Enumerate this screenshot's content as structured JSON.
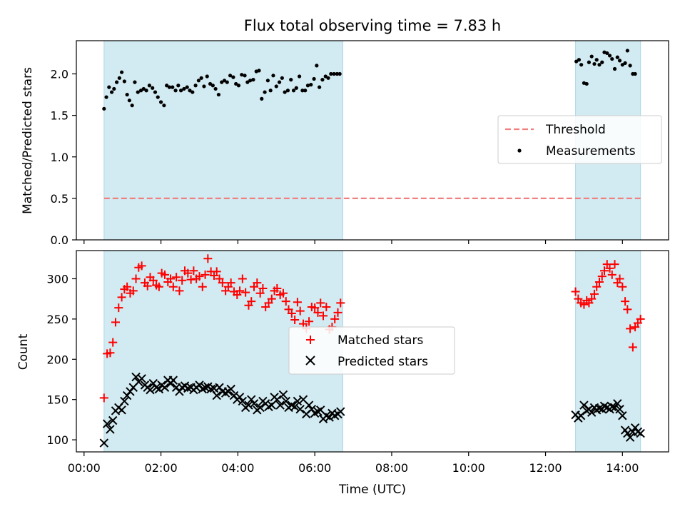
{
  "title": "Flux total observing time = 7.83 h",
  "xaxis": {
    "label": "Time (UTC)",
    "range_hours": [
      -0.2,
      15.2
    ],
    "ticks": [
      "00:00",
      "02:00",
      "04:00",
      "06:00",
      "08:00",
      "10:00",
      "12:00",
      "14:00"
    ],
    "tick_hours": [
      0,
      2,
      4,
      6,
      8,
      10,
      12,
      14
    ]
  },
  "shaded_intervals_hours": [
    [
      0.52,
      6.73
    ],
    [
      12.78,
      14.47
    ]
  ],
  "colors": {
    "shade": "#add8e6",
    "threshold": "#f08080",
    "measurements": "#000000",
    "matched": "#ff0000",
    "predicted": "#000000"
  },
  "chart_data": [
    {
      "type": "scatter",
      "ylabel": "Matched/Predicted stars",
      "ylim": [
        0.0,
        2.4
      ],
      "yticks": [
        "0.0",
        "0.5",
        "1.0",
        "1.5",
        "2.0"
      ],
      "ytick_values": [
        0.0,
        0.5,
        1.0,
        1.5,
        2.0
      ],
      "legend_position": "center-right",
      "threshold": {
        "name": "Threshold",
        "value": 0.5,
        "x_range": [
          0.52,
          14.47
        ]
      },
      "series": [
        {
          "name": "Measurements",
          "x": [
            0.52,
            0.58,
            0.65,
            0.72,
            0.78,
            0.85,
            0.92,
            0.98,
            1.05,
            1.12,
            1.18,
            1.25,
            1.32,
            1.4,
            1.48,
            1.55,
            1.62,
            1.7,
            1.78,
            1.85,
            1.92,
            2.0,
            2.08,
            2.15,
            2.22,
            2.3,
            2.38,
            2.45,
            2.52,
            2.6,
            2.68,
            2.75,
            2.82,
            2.9,
            2.98,
            3.05,
            3.12,
            3.2,
            3.28,
            3.35,
            3.42,
            3.5,
            3.58,
            3.65,
            3.72,
            3.8,
            3.88,
            3.95,
            4.02,
            4.1,
            4.18,
            4.25,
            4.32,
            4.4,
            4.48,
            4.55,
            4.62,
            4.7,
            4.78,
            4.85,
            4.92,
            5.0,
            5.08,
            5.15,
            5.22,
            5.3,
            5.38,
            5.45,
            5.52,
            5.6,
            5.68,
            5.75,
            5.82,
            5.9,
            5.98,
            6.05,
            6.12,
            6.2,
            6.28,
            6.35,
            6.42,
            6.5,
            6.58,
            6.65,
            12.8,
            12.87,
            12.93,
            13.0,
            13.07,
            13.13,
            13.2,
            13.27,
            13.33,
            13.4,
            13.47,
            13.53,
            13.6,
            13.67,
            13.73,
            13.8,
            13.87,
            13.93,
            14.0,
            14.07,
            14.13,
            14.2,
            14.27,
            14.33
          ],
          "y": [
            1.58,
            1.72,
            1.84,
            1.78,
            1.82,
            1.9,
            1.95,
            2.02,
            1.91,
            1.75,
            1.68,
            1.62,
            1.9,
            1.78,
            1.8,
            1.82,
            1.8,
            1.86,
            1.83,
            1.78,
            1.72,
            1.66,
            1.62,
            1.86,
            1.84,
            1.84,
            1.8,
            1.86,
            1.8,
            1.82,
            1.84,
            1.8,
            1.78,
            1.86,
            1.92,
            1.95,
            1.85,
            1.97,
            1.88,
            1.86,
            1.82,
            1.75,
            1.9,
            1.92,
            1.9,
            1.98,
            1.96,
            1.88,
            1.86,
            1.99,
            1.98,
            1.9,
            1.92,
            1.93,
            2.03,
            2.04,
            1.7,
            1.78,
            1.92,
            1.8,
            1.98,
            1.85,
            1.9,
            1.95,
            1.78,
            1.8,
            1.93,
            1.8,
            1.83,
            1.97,
            1.8,
            1.8,
            1.86,
            1.87,
            1.94,
            2.1,
            1.84,
            1.93,
            1.97,
            1.95,
            2.0,
            2.0,
            2.0,
            2.0,
            2.15,
            2.17,
            2.11,
            1.89,
            1.88,
            2.14,
            2.21,
            2.12,
            2.17,
            2.11,
            2.14,
            2.26,
            2.25,
            2.22,
            2.18,
            2.06,
            2.2,
            2.16,
            2.11,
            2.13,
            2.28,
            2.1,
            2.0,
            2.0
          ]
        }
      ]
    },
    {
      "type": "scatter",
      "ylabel": "Count",
      "ylim": [
        85,
        335
      ],
      "yticks": [
        "100",
        "150",
        "200",
        "250",
        "300"
      ],
      "ytick_values": [
        100,
        150,
        200,
        250,
        300
      ],
      "legend_position": "center",
      "series": [
        {
          "name": "Matched stars",
          "marker": "plus",
          "x": [
            0.52,
            0.6,
            0.68,
            0.75,
            0.82,
            0.9,
            0.98,
            1.05,
            1.12,
            1.2,
            1.28,
            1.35,
            1.42,
            1.5,
            1.58,
            1.65,
            1.72,
            1.8,
            1.88,
            1.95,
            2.02,
            2.1,
            2.18,
            2.25,
            2.32,
            2.4,
            2.48,
            2.55,
            2.62,
            2.7,
            2.78,
            2.85,
            2.92,
            3.0,
            3.08,
            3.15,
            3.22,
            3.3,
            3.38,
            3.45,
            3.52,
            3.6,
            3.68,
            3.75,
            3.82,
            3.9,
            3.98,
            4.05,
            4.12,
            4.2,
            4.28,
            4.35,
            4.42,
            4.5,
            4.58,
            4.65,
            4.72,
            4.8,
            4.88,
            4.95,
            5.02,
            5.1,
            5.18,
            5.25,
            5.32,
            5.4,
            5.48,
            5.55,
            5.62,
            5.7,
            5.78,
            5.85,
            5.92,
            6.0,
            6.08,
            6.15,
            6.22,
            6.3,
            6.38,
            6.45,
            6.52,
            6.6,
            6.67,
            12.78,
            12.85,
            12.92,
            13.0,
            13.07,
            13.13,
            13.2,
            13.27,
            13.33,
            13.4,
            13.47,
            13.53,
            13.6,
            13.67,
            13.73,
            13.8,
            13.87,
            13.93,
            14.0,
            14.07,
            14.13,
            14.2,
            14.27,
            14.33,
            14.4,
            14.47
          ],
          "y": [
            152,
            207,
            208,
            221,
            246,
            264,
            277,
            287,
            290,
            282,
            285,
            300,
            314,
            316,
            295,
            291,
            302,
            298,
            292,
            290,
            307,
            305,
            296,
            300,
            290,
            302,
            285,
            298,
            310,
            307,
            299,
            310,
            300,
            303,
            290,
            305,
            325,
            309,
            304,
            309,
            300,
            295,
            285,
            290,
            295,
            284,
            280,
            285,
            300,
            283,
            267,
            272,
            290,
            295,
            282,
            288,
            265,
            270,
            275,
            285,
            288,
            280,
            282,
            272,
            262,
            257,
            249,
            271,
            260,
            244,
            238,
            247,
            265,
            264,
            258,
            270,
            254,
            265,
            237,
            240,
            250,
            258,
            270,
            284,
            275,
            270,
            268,
            273,
            270,
            275,
            281,
            290,
            296,
            303,
            310,
            318,
            313,
            305,
            318,
            295,
            300,
            290,
            272,
            262,
            238,
            215,
            240,
            245,
            250
          ]
        },
        {
          "name": "Predicted stars",
          "marker": "x",
          "x": [
            0.52,
            0.6,
            0.68,
            0.75,
            0.82,
            0.9,
            0.98,
            1.05,
            1.12,
            1.2,
            1.28,
            1.35,
            1.42,
            1.5,
            1.58,
            1.65,
            1.72,
            1.8,
            1.88,
            1.95,
            2.02,
            2.1,
            2.18,
            2.25,
            2.32,
            2.4,
            2.48,
            2.55,
            2.62,
            2.7,
            2.78,
            2.85,
            2.92,
            3.0,
            3.08,
            3.15,
            3.22,
            3.3,
            3.38,
            3.45,
            3.52,
            3.6,
            3.68,
            3.75,
            3.82,
            3.9,
            3.98,
            4.05,
            4.12,
            4.2,
            4.28,
            4.35,
            4.42,
            4.5,
            4.58,
            4.65,
            4.72,
            4.8,
            4.88,
            4.95,
            5.02,
            5.1,
            5.18,
            5.25,
            5.32,
            5.4,
            5.48,
            5.55,
            5.62,
            5.7,
            5.78,
            5.85,
            5.92,
            6.0,
            6.08,
            6.15,
            6.22,
            6.3,
            6.38,
            6.45,
            6.52,
            6.6,
            6.67,
            12.78,
            12.85,
            12.92,
            13.0,
            13.07,
            13.13,
            13.2,
            13.27,
            13.33,
            13.4,
            13.47,
            13.53,
            13.6,
            13.67,
            13.73,
            13.8,
            13.87,
            13.93,
            14.0,
            14.07,
            14.13,
            14.2,
            14.27,
            14.33,
            14.4,
            14.47
          ],
          "y": [
            96,
            120,
            113,
            124,
            136,
            140,
            137,
            148,
            155,
            160,
            165,
            178,
            172,
            176,
            168,
            165,
            162,
            170,
            165,
            163,
            168,
            165,
            174,
            170,
            174,
            165,
            160,
            165,
            167,
            164,
            165,
            162,
            165,
            168,
            163,
            165,
            166,
            163,
            164,
            155,
            165,
            160,
            158,
            160,
            163,
            155,
            150,
            153,
            148,
            140,
            143,
            150,
            145,
            137,
            140,
            148,
            145,
            141,
            143,
            153,
            150,
            143,
            156,
            148,
            140,
            143,
            141,
            148,
            138,
            150,
            132,
            143,
            138,
            133,
            135,
            137,
            126,
            130,
            128,
            133,
            130,
            132,
            135,
            131,
            127,
            130,
            143,
            136,
            138,
            134,
            140,
            137,
            139,
            138,
            142,
            140,
            138,
            141,
            140,
            145,
            138,
            130,
            112,
            108,
            103,
            110,
            115,
            110,
            108
          ]
        }
      ]
    }
  ]
}
